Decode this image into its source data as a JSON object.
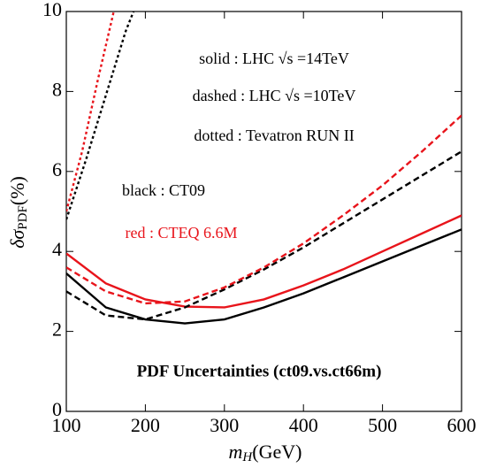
{
  "chart_data": {
    "type": "line",
    "x_label": {
      "main": "m",
      "sub": "H",
      "tail": "(GeV)"
    },
    "y_label": {
      "main": "δσ",
      "sub": "PDF",
      "tail": "(%)"
    },
    "xlim": [
      100,
      600
    ],
    "xticks": [
      100,
      200,
      300,
      400,
      500,
      600
    ],
    "ylim": [
      0,
      10
    ],
    "yticks": [
      0,
      2,
      4,
      6,
      8,
      10
    ],
    "annotations": [
      {
        "text": "solid : LHC √s =14TeV",
        "color": "#000000"
      },
      {
        "text": "dashed : LHC √s =10TeV",
        "color": "#000000"
      },
      {
        "text": "dotted : Tevatron RUN II",
        "color": "#000000"
      },
      {
        "text": "black : CT09",
        "color": "#000000"
      },
      {
        "text": "red : CTEQ 6.6M",
        "color": "#e8141b"
      },
      {
        "text": "PDF Uncertainties (ct09.vs.ct66m)",
        "color": "#000000",
        "bold": true
      }
    ],
    "series": [
      {
        "color": "#000000",
        "dash": "solid",
        "x": [
          100,
          150,
          200,
          250,
          300,
          350,
          400,
          450,
          500,
          550,
          600
        ],
        "values": [
          3.45,
          2.6,
          2.3,
          2.2,
          2.3,
          2.6,
          2.95,
          3.35,
          3.75,
          4.15,
          4.55
        ]
      },
      {
        "color": "#e8141b",
        "dash": "solid",
        "x": [
          100,
          150,
          200,
          250,
          300,
          350,
          400,
          450,
          500,
          550,
          600
        ],
        "values": [
          3.95,
          3.2,
          2.8,
          2.62,
          2.6,
          2.8,
          3.15,
          3.55,
          4.0,
          4.45,
          4.9
        ]
      },
      {
        "color": "#000000",
        "dash": "dashed",
        "x": [
          100,
          150,
          200,
          250,
          300,
          350,
          400,
          450,
          500,
          550,
          600
        ],
        "values": [
          3.0,
          2.4,
          2.3,
          2.6,
          3.05,
          3.55,
          4.1,
          4.7,
          5.3,
          5.9,
          6.5
        ]
      },
      {
        "color": "#e8141b",
        "dash": "dashed",
        "x": [
          100,
          150,
          200,
          250,
          300,
          350,
          400,
          450,
          500,
          550,
          600
        ],
        "values": [
          3.6,
          3.0,
          2.7,
          2.75,
          3.1,
          3.6,
          4.2,
          4.9,
          5.65,
          6.5,
          7.4
        ]
      },
      {
        "color": "#000000",
        "dash": "dotted",
        "x": [
          100,
          125,
          150,
          175,
          185
        ],
        "values": [
          4.8,
          6.3,
          7.9,
          9.5,
          10
        ]
      },
      {
        "color": "#e8141b",
        "dash": "dotted",
        "x": [
          100,
          120,
          140,
          160
        ],
        "values": [
          5.0,
          6.5,
          8.3,
          10
        ]
      }
    ]
  }
}
